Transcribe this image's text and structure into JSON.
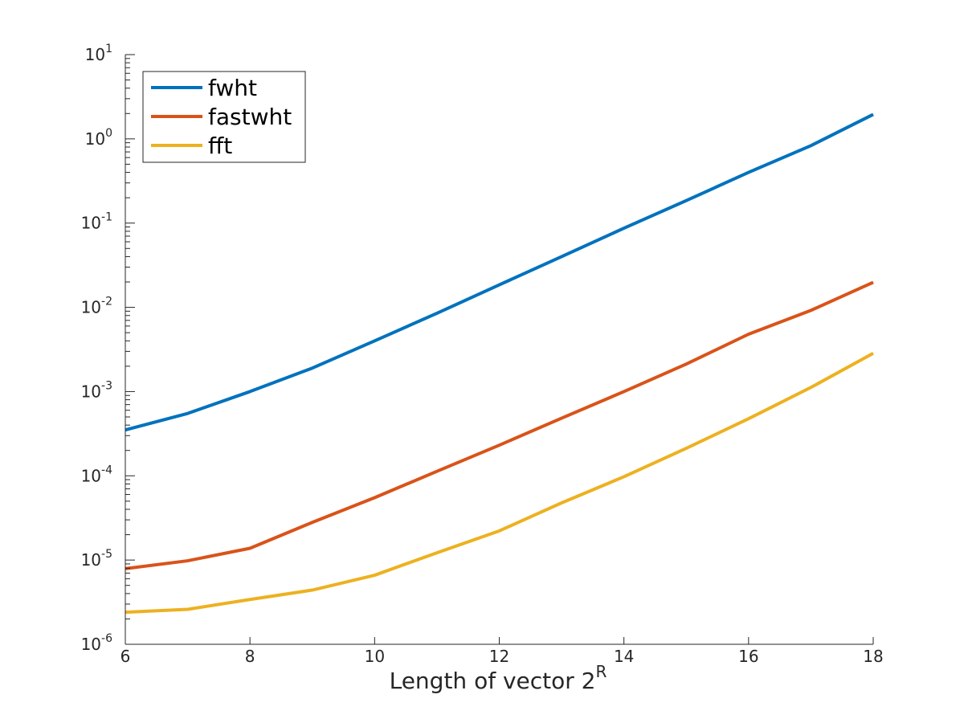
{
  "chart_data": {
    "type": "line",
    "title": "",
    "xlabel": "Length of vector 2",
    "xlabel_superscript": "R",
    "ylabel": "",
    "xlim": [
      6,
      18
    ],
    "ylim": [
      1e-06,
      10
    ],
    "yscale": "log",
    "grid": false,
    "legend_position": "top-left",
    "x_ticks": [
      6,
      8,
      10,
      12,
      14,
      16,
      18
    ],
    "y_ticks": [
      {
        "base": "10",
        "exp": "-6"
      },
      {
        "base": "10",
        "exp": "-5"
      },
      {
        "base": "10",
        "exp": "-4"
      },
      {
        "base": "10",
        "exp": "-3"
      },
      {
        "base": "10",
        "exp": "-2"
      },
      {
        "base": "10",
        "exp": "-1"
      },
      {
        "base": "10",
        "exp": "0"
      },
      {
        "base": "10",
        "exp": "1"
      }
    ],
    "x": [
      6,
      7,
      8,
      9,
      10,
      11,
      12,
      13,
      14,
      15,
      16,
      17,
      18
    ],
    "series": [
      {
        "name": "fwht",
        "color": "#0072BD",
        "values": [
          0.00035,
          0.00055,
          0.001,
          0.0019,
          0.004,
          0.0085,
          0.0185,
          0.04,
          0.087,
          0.185,
          0.4,
          0.83,
          1.95
        ]
      },
      {
        "name": "fastwht",
        "color": "#D95319",
        "values": [
          7.9e-06,
          9.8e-06,
          1.38e-05,
          2.8e-05,
          5.5e-05,
          0.000113,
          0.000231,
          0.000483,
          0.001,
          0.00212,
          0.0048,
          0.0092,
          0.0198
        ]
      },
      {
        "name": "fft",
        "color": "#EDB120",
        "values": [
          2.4e-06,
          2.6e-06,
          3.4e-06,
          4.4e-06,
          6.6e-06,
          1.22e-05,
          2.22e-05,
          4.77e-05,
          9.75e-05,
          0.000212,
          0.000476,
          0.00112,
          0.00285
        ]
      }
    ]
  }
}
